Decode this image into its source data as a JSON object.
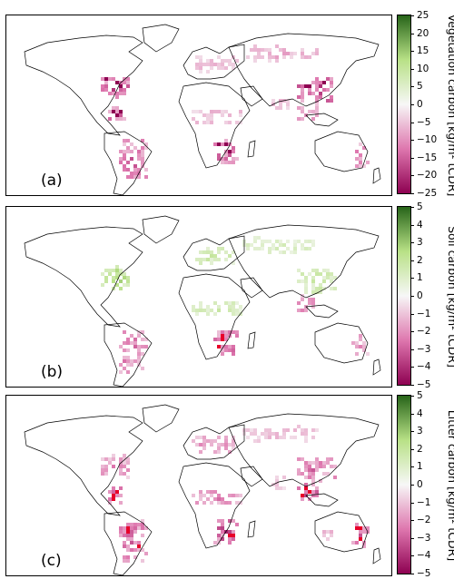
{
  "panels": [
    {
      "label": "(a)",
      "colorbar_label": "Vegetation carbon [kg/m² tCDR]",
      "ticks": [
        "25",
        "20",
        "15",
        "10",
        "5",
        "0",
        "−5",
        "−10",
        "−15",
        "−20",
        "−25"
      ],
      "range": [
        -25,
        25
      ],
      "hotspots": [
        {
          "region": "eastern-us",
          "sign": "neg",
          "intensity": 0.9
        },
        {
          "region": "central-america",
          "sign": "neg",
          "intensity": 0.85
        },
        {
          "region": "south-america",
          "sign": "neg",
          "intensity": 0.75
        },
        {
          "region": "europe",
          "sign": "neg",
          "intensity": 0.35
        },
        {
          "region": "russia-siberia",
          "sign": "neg",
          "intensity": 0.4
        },
        {
          "region": "central-africa",
          "sign": "neg",
          "intensity": 0.4
        },
        {
          "region": "southern-africa",
          "sign": "neg",
          "intensity": 0.85
        },
        {
          "region": "east-asia",
          "sign": "neg",
          "intensity": 0.95
        },
        {
          "region": "southeast-asia",
          "sign": "neg",
          "intensity": 0.6
        },
        {
          "region": "india",
          "sign": "neg",
          "intensity": 0.35
        },
        {
          "region": "east-australia",
          "sign": "neg",
          "intensity": 0.6
        }
      ]
    },
    {
      "label": "(b)",
      "colorbar_label": "Soil carbon [kg/m² tCDR]",
      "ticks": [
        "5",
        "4",
        "3",
        "2",
        "1",
        "0",
        "−1",
        "−2",
        "−3",
        "−4",
        "−5"
      ],
      "range": [
        -5,
        5
      ],
      "hotspots": [
        {
          "region": "eastern-us",
          "sign": "pos",
          "intensity": 0.7
        },
        {
          "region": "europe",
          "sign": "pos",
          "intensity": 0.45
        },
        {
          "region": "russia-siberia",
          "sign": "pos",
          "intensity": 0.35
        },
        {
          "region": "central-africa",
          "sign": "pos",
          "intensity": 0.4
        },
        {
          "region": "east-asia",
          "sign": "pos",
          "intensity": 0.45
        },
        {
          "region": "south-america",
          "sign": "neg",
          "intensity": 0.7
        },
        {
          "region": "southern-africa",
          "sign": "neg",
          "intensity": 0.9
        },
        {
          "region": "southeast-asia",
          "sign": "neg",
          "intensity": 0.7
        },
        {
          "region": "east-australia",
          "sign": "neg",
          "intensity": 0.55
        }
      ]
    },
    {
      "label": "(c)",
      "colorbar_label": "Litter carbon [kg/m² tCDR]",
      "ticks": [
        "5",
        "4",
        "3",
        "2",
        "1",
        "0",
        "−1",
        "−2",
        "−3",
        "−4",
        "−5"
      ],
      "range": [
        -5,
        5
      ],
      "hotspots": [
        {
          "region": "eastern-us",
          "sign": "neg",
          "intensity": 0.6
        },
        {
          "region": "central-america",
          "sign": "neg",
          "intensity": 0.85
        },
        {
          "region": "south-america",
          "sign": "neg",
          "intensity": 0.8
        },
        {
          "region": "europe",
          "sign": "neg",
          "intensity": 0.55
        },
        {
          "region": "russia-siberia",
          "sign": "neg",
          "intensity": 0.35
        },
        {
          "region": "central-africa",
          "sign": "neg",
          "intensity": 0.6
        },
        {
          "region": "southern-africa",
          "sign": "neg",
          "intensity": 0.95
        },
        {
          "region": "east-asia",
          "sign": "neg",
          "intensity": 0.7
        },
        {
          "region": "southeast-asia",
          "sign": "neg",
          "intensity": 0.85
        },
        {
          "region": "india",
          "sign": "neg",
          "intensity": 0.3
        },
        {
          "region": "east-australia",
          "sign": "neg",
          "intensity": 0.8
        },
        {
          "region": "west-australia",
          "sign": "neg",
          "intensity": 0.4
        }
      ]
    }
  ],
  "colors": {
    "negative_max": "#8e0152",
    "negative_mid": "#de77ae",
    "neutral": "#f7f7f7",
    "positive_mid": "#b8e186",
    "positive_max": "#276419",
    "accent_red": "#e8002a"
  }
}
